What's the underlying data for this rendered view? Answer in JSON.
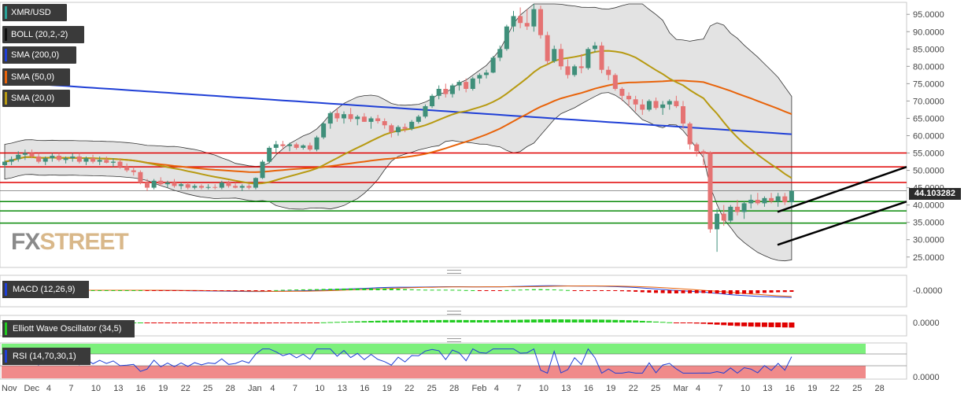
{
  "legend": {
    "symbol": "XMR/USD",
    "boll": "BOLL (20,2,-2)",
    "sma200": "SMA (200,0)",
    "sma50": "SMA (50,0)",
    "sma20": "SMA (20,0)"
  },
  "indicators": {
    "macd_label": "MACD (12,26,9)",
    "ewo_label": "Elliott Wave Oscillator (34,5)",
    "rsi_label": "RSI (14,70,30,1)",
    "macd_axis": "-0.0000",
    "ewo_axis": "0.0000",
    "rsi_axis": "0.0000"
  },
  "price_tag": "44.103282",
  "logo": {
    "fx": "FX",
    "street": "STREET"
  },
  "colors": {
    "up": "#3f8f7a",
    "down": "#e57373",
    "sma200": "#1f3fd6",
    "sma50": "#e8630a",
    "sma20": "#b79a12",
    "boll_fill": "#d7d7d7",
    "hline": "#e00000",
    "support": "#0a8a0a",
    "trend": "#000000",
    "macd_pos": "#22cc22",
    "macd_neg": "#e00000",
    "rsi_over": "#7cf07c",
    "rsi_under": "#f08a8a",
    "rsi_line": "#1f3fd6"
  },
  "chart_data": {
    "type": "candlestick",
    "symbol": "XMR/USD",
    "y_axis_ticks": [
      "95.0000",
      "90.0000",
      "85.0000",
      "80.0000",
      "75.0000",
      "70.0000",
      "65.0000",
      "60.0000",
      "55.0000",
      "50.0000",
      "45.0000",
      "40.0000",
      "35.0000",
      "30.0000",
      "25.0000"
    ],
    "ylim": [
      22,
      98
    ],
    "x_axis_ticks": [
      "Nov",
      "Dec",
      "4",
      "7",
      "10",
      "13",
      "16",
      "19",
      "22",
      "25",
      "28",
      "Jan",
      "4",
      "7",
      "10",
      "13",
      "16",
      "19",
      "22",
      "25",
      "28",
      "Feb",
      "4",
      "7",
      "10",
      "13",
      "16",
      "19",
      "22",
      "25",
      "Mar",
      "4",
      "7",
      "10",
      "13",
      "16",
      "19",
      "22",
      "25",
      "28"
    ],
    "last_price": 44.103282,
    "resistance_levels": [
      55.0,
      51.0,
      46.5
    ],
    "support_levels": [
      41.0,
      38.3,
      34.8
    ],
    "candles": [
      [
        51.5,
        53.5,
        50.5,
        52.5
      ],
      [
        52.5,
        54,
        51.5,
        53.2
      ],
      [
        53.2,
        55.5,
        52.5,
        54.5
      ],
      [
        54.5,
        56,
        53,
        55
      ],
      [
        55,
        56,
        53.5,
        54
      ],
      [
        54,
        55,
        52,
        52.5
      ],
      [
        52.5,
        54,
        51.5,
        53.5
      ],
      [
        53.5,
        55,
        52.5,
        54.2
      ],
      [
        54.2,
        55,
        52.5,
        53
      ],
      [
        53,
        54,
        52,
        53.5
      ],
      [
        53.5,
        55,
        52.5,
        54
      ],
      [
        54,
        55,
        52,
        52.5
      ],
      [
        52.5,
        54,
        51.5,
        53.5
      ],
      [
        53.5,
        54.5,
        52,
        52.5
      ],
      [
        52.5,
        54,
        51.5,
        53
      ],
      [
        53,
        54,
        52,
        52.2
      ],
      [
        52.2,
        53.5,
        51,
        52.5
      ],
      [
        52.5,
        53.5,
        50.5,
        51
      ],
      [
        51,
        52,
        49.5,
        50
      ],
      [
        50,
        51,
        48.5,
        49.5
      ],
      [
        49.5,
        50,
        46,
        46.5
      ],
      [
        46.5,
        47.5,
        44,
        45
      ],
      [
        45,
        47.5,
        44.5,
        47
      ],
      [
        47,
        48,
        45.5,
        46
      ],
      [
        46,
        47,
        45,
        46.5
      ],
      [
        46.5,
        47.5,
        45,
        45.5
      ],
      [
        45.5,
        46.5,
        44.5,
        46
      ],
      [
        46,
        46.5,
        44.5,
        45
      ],
      [
        45,
        46,
        44.5,
        45.5
      ],
      [
        45.5,
        46,
        44.5,
        45
      ],
      [
        45,
        46,
        44.5,
        45.2
      ],
      [
        45.2,
        46,
        44.5,
        45
      ],
      [
        45,
        47,
        44.5,
        46.5
      ],
      [
        46.5,
        47,
        45,
        45.5
      ],
      [
        45.5,
        46.5,
        44.8,
        45
      ],
      [
        45,
        46,
        44,
        45.5
      ],
      [
        45.5,
        46,
        44.5,
        45
      ],
      [
        45,
        48,
        44.5,
        47.8
      ],
      [
        47.8,
        53,
        47.5,
        52.5
      ],
      [
        52.5,
        57,
        52,
        56.5
      ],
      [
        56.5,
        58.5,
        55,
        57.5
      ],
      [
        57.5,
        58.5,
        56,
        57
      ],
      [
        57,
        58,
        55.5,
        57.5
      ],
      [
        57.5,
        58,
        56,
        56.5
      ],
      [
        56.5,
        57.5,
        56,
        57.2
      ],
      [
        57.2,
        58,
        55.5,
        56
      ],
      [
        56,
        60,
        55.5,
        59.5
      ],
      [
        59.5,
        64,
        59,
        63.5
      ],
      [
        63.5,
        67,
        62,
        66.5
      ],
      [
        66.5,
        68,
        64,
        65
      ],
      [
        65,
        67,
        63.5,
        66.2
      ],
      [
        66.2,
        68,
        64,
        64.8
      ],
      [
        64.8,
        66,
        63,
        65.5
      ],
      [
        65.5,
        66.5,
        64,
        64
      ],
      [
        64,
        65.5,
        62,
        65
      ],
      [
        65,
        66,
        63.5,
        64.2
      ],
      [
        64.2,
        65,
        62,
        63
      ],
      [
        63,
        63.5,
        59.5,
        61
      ],
      [
        61,
        63,
        60,
        62.5
      ],
      [
        62.5,
        63.5,
        61,
        62
      ],
      [
        62,
        64.5,
        61.5,
        64
      ],
      [
        64,
        66,
        63.5,
        65.5
      ],
      [
        65.5,
        69,
        65,
        68.5
      ],
      [
        68.5,
        72,
        68,
        71.5
      ],
      [
        71.5,
        74.5,
        70.5,
        73.5
      ],
      [
        73.5,
        75,
        71,
        72
      ],
      [
        72,
        75,
        71,
        74.5
      ],
      [
        74.5,
        76,
        73,
        75.5
      ],
      [
        75.5,
        76.5,
        72.5,
        73.5
      ],
      [
        73.5,
        77,
        73,
        76.5
      ],
      [
        76.5,
        78,
        75,
        77.5
      ],
      [
        77.5,
        79,
        76.5,
        78.2
      ],
      [
        78.2,
        83,
        78,
        82.5
      ],
      [
        82.5,
        86,
        81.5,
        85
      ],
      [
        85,
        92,
        84.5,
        91.5
      ],
      [
        91.5,
        96,
        90,
        94.5
      ],
      [
        94.5,
        97,
        91,
        92.5
      ],
      [
        92.5,
        96.5,
        90.5,
        91.5
      ],
      [
        91.5,
        98,
        90,
        96.5
      ],
      [
        96.5,
        97.5,
        88,
        89
      ],
      [
        89,
        90,
        80.5,
        81.5
      ],
      [
        81.5,
        86,
        81,
        85
      ],
      [
        85,
        86.5,
        79,
        80
      ],
      [
        80,
        82,
        76.5,
        77.5
      ],
      [
        77.5,
        80.5,
        77,
        80
      ],
      [
        80,
        83.5,
        78,
        79.5
      ],
      [
        79.5,
        85.5,
        79,
        85
      ],
      [
        85,
        87,
        84,
        86
      ],
      [
        86,
        87,
        78,
        79
      ],
      [
        79,
        80,
        76,
        77.5
      ],
      [
        77.5,
        78,
        73,
        73.5
      ],
      [
        73.5,
        74,
        70,
        71.5
      ],
      [
        71.5,
        72.5,
        68.5,
        70.5
      ],
      [
        70.5,
        71.5,
        67,
        69
      ],
      [
        69,
        70.5,
        66,
        67.5
      ],
      [
        67.5,
        70.5,
        67,
        70
      ],
      [
        70,
        71,
        67.5,
        68
      ],
      [
        68,
        70,
        66,
        69
      ],
      [
        69,
        70.5,
        67.5,
        70
      ],
      [
        70,
        71.5,
        68,
        68.5
      ],
      [
        68.5,
        70,
        62,
        63.5
      ],
      [
        63.5,
        64,
        56,
        57.5
      ],
      [
        57.5,
        58,
        54,
        55.5
      ],
      [
        55.5,
        56,
        51.5,
        55
      ],
      [
        55,
        55.5,
        32,
        33
      ],
      [
        33,
        39,
        26.5,
        37.5
      ],
      [
        37.5,
        40,
        34,
        35.5
      ],
      [
        35.5,
        40,
        35,
        39.5
      ],
      [
        39.5,
        41.5,
        37,
        38
      ],
      [
        38,
        41,
        36,
        40.5
      ],
      [
        40.5,
        43,
        39,
        41.5
      ],
      [
        41.5,
        43.5,
        40,
        40.5
      ],
      [
        40.5,
        42.5,
        39.5,
        42
      ],
      [
        42,
        43.5,
        40.5,
        41
      ],
      [
        41,
        43.5,
        39.5,
        42.5
      ],
      [
        42.5,
        43.5,
        40,
        40.8
      ],
      [
        40.8,
        44.5,
        39,
        44.1
      ]
    ]
  }
}
